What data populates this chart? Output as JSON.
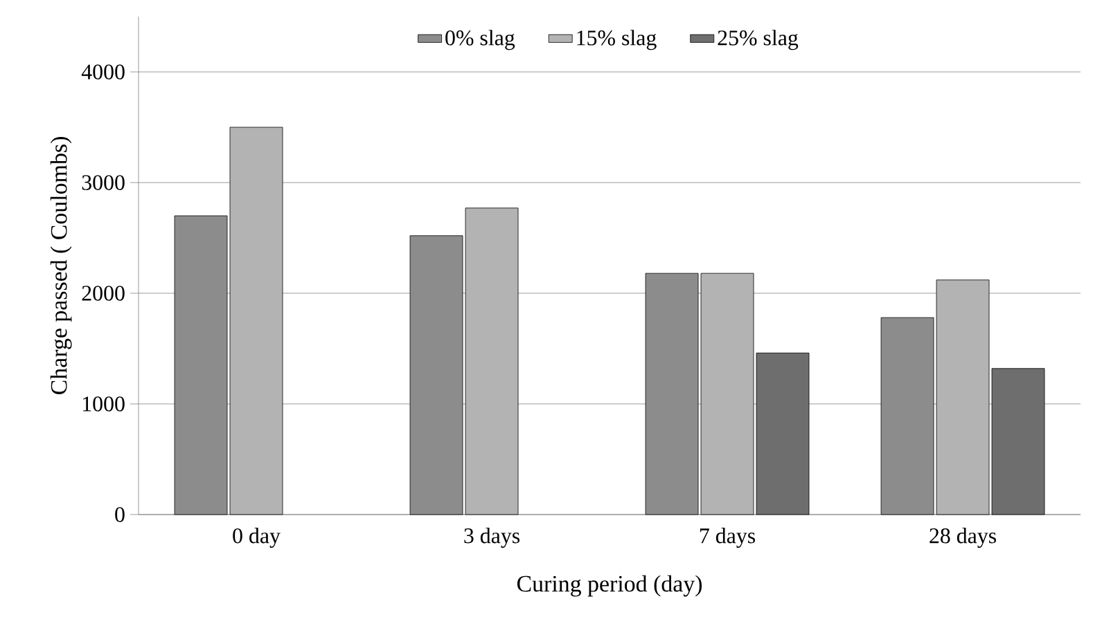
{
  "chart_data": {
    "type": "bar",
    "xlabel": "Curing period (day)",
    "ylabel": "Charge passed ( Coulombs)",
    "categories": [
      "0 day",
      "3 days",
      "7 days",
      "28 days"
    ],
    "series": [
      {
        "name": "0% slag",
        "color": "#8c8c8c",
        "values": [
          2700,
          2520,
          2180,
          1780
        ]
      },
      {
        "name": "15% slag",
        "color": "#b3b3b3",
        "values": [
          3500,
          2770,
          2180,
          2120
        ]
      },
      {
        "name": "25% slag",
        "color": "#6e6e6e",
        "values": [
          null,
          null,
          1460,
          1320
        ]
      }
    ],
    "ylim": [
      0,
      4500
    ],
    "yticks": [
      0,
      1000,
      2000,
      3000,
      4000
    ],
    "grid": "y",
    "legend": "top"
  }
}
